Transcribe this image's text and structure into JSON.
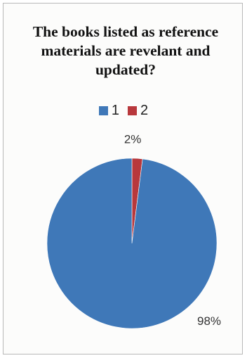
{
  "chart_data": {
    "type": "pie",
    "title": "The books listed as reference materials are revelant and updated?",
    "categories": [
      "1",
      "2"
    ],
    "values": [
      98,
      2
    ],
    "data_labels": [
      "98%",
      "2%"
    ],
    "legend_position": "top",
    "colors": [
      "#3f78b8",
      "#b8383c"
    ]
  }
}
